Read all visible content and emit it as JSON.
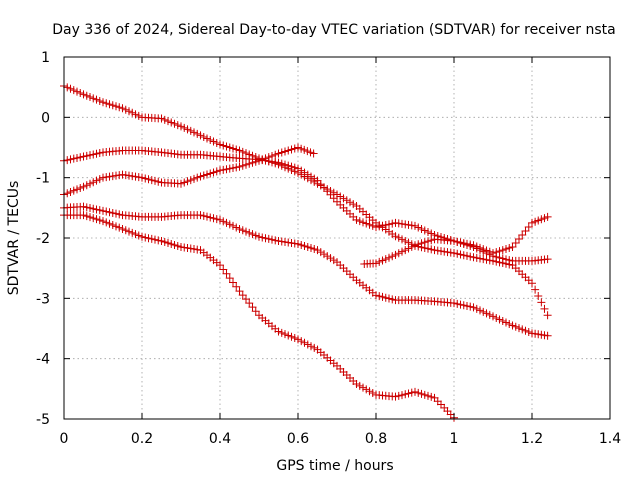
{
  "chart_data": {
    "type": "scatter",
    "title": "Day 336 of 2024, Sidereal Day-to-day VTEC variation (SDTVAR) for receiver nsta",
    "xlabel": "GPS time / hours",
    "ylabel": "SDTVAR / TECUs",
    "xlim": [
      0,
      1.4
    ],
    "ylim": [
      -5,
      1
    ],
    "xticks": [
      0,
      0.2,
      0.4,
      0.6,
      0.8,
      1,
      1.2,
      1.4
    ],
    "xtick_labels": [
      "0",
      "0.2",
      "0.4",
      "0.6",
      "0.8",
      "1",
      "1.2",
      "1.4"
    ],
    "yticks": [
      -5,
      -4,
      -3,
      -2,
      -1,
      0,
      1
    ],
    "ytick_labels": [
      "-5",
      "-4",
      "-3",
      "-2",
      "-1",
      "0",
      "1"
    ],
    "grid": true,
    "marker": "+",
    "marker_color": "#cc0000",
    "series": [
      {
        "name": "series-1",
        "points": [
          [
            0.0,
            0.52
          ],
          [
            0.05,
            0.38
          ],
          [
            0.1,
            0.25
          ],
          [
            0.15,
            0.15
          ],
          [
            0.2,
            0.0
          ],
          [
            0.25,
            -0.02
          ],
          [
            0.3,
            -0.15
          ],
          [
            0.35,
            -0.3
          ],
          [
            0.4,
            -0.45
          ],
          [
            0.45,
            -0.55
          ],
          [
            0.5,
            -0.68
          ],
          [
            0.55,
            -0.78
          ],
          [
            0.6,
            -0.92
          ],
          [
            0.65,
            -1.1
          ],
          [
            0.7,
            -1.28
          ],
          [
            0.75,
            -1.47
          ],
          [
            0.8,
            -1.75
          ],
          [
            0.85,
            -1.97
          ],
          [
            0.9,
            -2.13
          ],
          [
            0.95,
            -2.2
          ],
          [
            1.0,
            -2.25
          ],
          [
            1.05,
            -2.32
          ],
          [
            1.1,
            -2.38
          ],
          [
            1.15,
            -2.45
          ],
          [
            1.2,
            -2.75
          ],
          [
            1.24,
            -3.28
          ]
        ]
      },
      {
        "name": "series-2",
        "points": [
          [
            0.0,
            -0.72
          ],
          [
            0.05,
            -0.65
          ],
          [
            0.1,
            -0.58
          ],
          [
            0.15,
            -0.55
          ],
          [
            0.2,
            -0.55
          ],
          [
            0.25,
            -0.58
          ],
          [
            0.3,
            -0.62
          ],
          [
            0.35,
            -0.62
          ],
          [
            0.4,
            -0.65
          ],
          [
            0.45,
            -0.68
          ],
          [
            0.5,
            -0.7
          ],
          [
            0.55,
            -0.75
          ],
          [
            0.6,
            -0.85
          ],
          [
            0.65,
            -1.05
          ],
          [
            0.7,
            -1.4
          ],
          [
            0.75,
            -1.7
          ],
          [
            0.8,
            -1.82
          ],
          [
            0.85,
            -1.75
          ],
          [
            0.9,
            -1.8
          ],
          [
            0.95,
            -1.95
          ],
          [
            1.0,
            -2.05
          ],
          [
            1.05,
            -2.15
          ],
          [
            1.1,
            -2.3
          ],
          [
            1.15,
            -2.38
          ],
          [
            1.2,
            -2.38
          ],
          [
            1.24,
            -2.35
          ]
        ]
      },
      {
        "name": "series-3",
        "points": [
          [
            0.0,
            -1.28
          ],
          [
            0.05,
            -1.15
          ],
          [
            0.1,
            -1.0
          ],
          [
            0.15,
            -0.95
          ],
          [
            0.2,
            -1.0
          ],
          [
            0.25,
            -1.08
          ],
          [
            0.3,
            -1.1
          ],
          [
            0.35,
            -0.98
          ],
          [
            0.4,
            -0.88
          ],
          [
            0.45,
            -0.82
          ],
          [
            0.5,
            -0.72
          ],
          [
            0.55,
            -0.6
          ],
          [
            0.6,
            -0.5
          ],
          [
            0.64,
            -0.6
          ]
        ]
      },
      {
        "name": "series-4",
        "points": [
          [
            0.0,
            -1.5
          ],
          [
            0.05,
            -1.48
          ],
          [
            0.1,
            -1.55
          ],
          [
            0.15,
            -1.62
          ],
          [
            0.2,
            -1.65
          ],
          [
            0.25,
            -1.65
          ],
          [
            0.3,
            -1.62
          ],
          [
            0.35,
            -1.62
          ],
          [
            0.4,
            -1.7
          ],
          [
            0.45,
            -1.85
          ],
          [
            0.5,
            -1.98
          ],
          [
            0.55,
            -2.05
          ],
          [
            0.6,
            -2.1
          ],
          [
            0.65,
            -2.2
          ],
          [
            0.7,
            -2.4
          ],
          [
            0.75,
            -2.7
          ],
          [
            0.8,
            -2.95
          ],
          [
            0.85,
            -3.03
          ],
          [
            0.9,
            -3.03
          ],
          [
            0.95,
            -3.05
          ],
          [
            1.0,
            -3.08
          ],
          [
            1.05,
            -3.15
          ],
          [
            1.1,
            -3.3
          ],
          [
            1.15,
            -3.45
          ],
          [
            1.2,
            -3.58
          ],
          [
            1.24,
            -3.62
          ]
        ]
      },
      {
        "name": "series-5",
        "points": [
          [
            0.0,
            -1.62
          ],
          [
            0.05,
            -1.62
          ],
          [
            0.1,
            -1.72
          ],
          [
            0.15,
            -1.85
          ],
          [
            0.2,
            -1.98
          ],
          [
            0.25,
            -2.05
          ],
          [
            0.3,
            -2.15
          ],
          [
            0.35,
            -2.2
          ],
          [
            0.4,
            -2.45
          ],
          [
            0.45,
            -2.88
          ],
          [
            0.5,
            -3.28
          ],
          [
            0.55,
            -3.55
          ],
          [
            0.6,
            -3.68
          ],
          [
            0.65,
            -3.85
          ],
          [
            0.7,
            -4.12
          ],
          [
            0.75,
            -4.42
          ],
          [
            0.8,
            -4.6
          ],
          [
            0.85,
            -4.63
          ],
          [
            0.9,
            -4.55
          ],
          [
            0.95,
            -4.65
          ],
          [
            1.0,
            -4.98
          ]
        ]
      },
      {
        "name": "series-6",
        "points": [
          [
            0.77,
            -2.43
          ],
          [
            0.8,
            -2.42
          ],
          [
            0.85,
            -2.28
          ],
          [
            0.9,
            -2.12
          ],
          [
            0.95,
            -2.02
          ],
          [
            1.0,
            -2.05
          ],
          [
            1.05,
            -2.12
          ],
          [
            1.1,
            -2.25
          ],
          [
            1.15,
            -2.15
          ],
          [
            1.2,
            -1.75
          ],
          [
            1.24,
            -1.65
          ]
        ]
      }
    ]
  }
}
